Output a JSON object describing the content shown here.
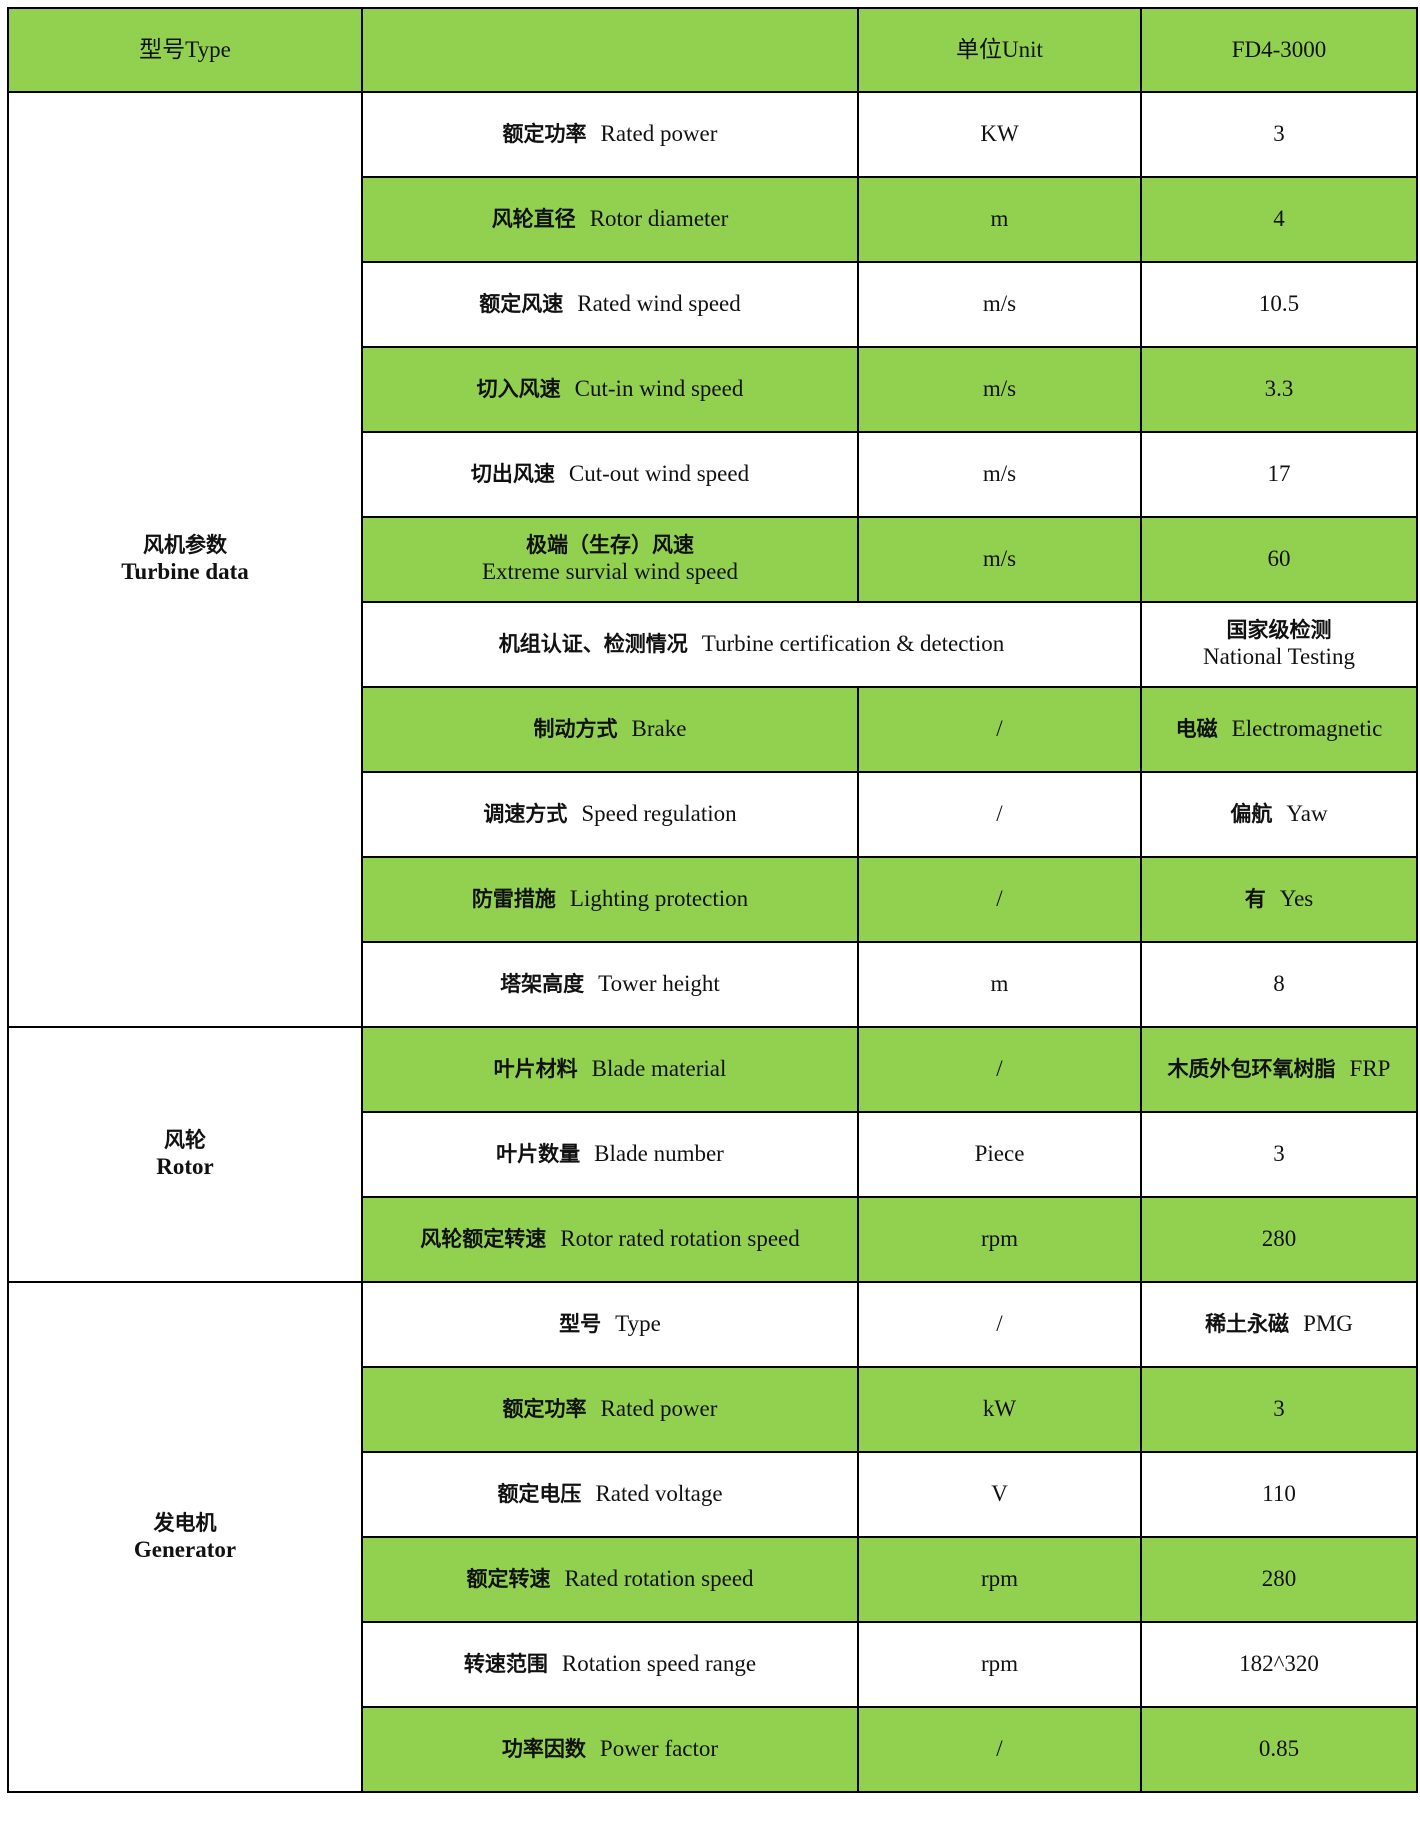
{
  "colors": {
    "green": "#92d050",
    "white": "#ffffff"
  },
  "header": {
    "type": "型号Type",
    "param": "",
    "unit": "单位Unit",
    "model": "FD4-3000"
  },
  "groups": [
    {
      "zh": "风机参数",
      "en": "Turbine data"
    },
    {
      "zh": "风轮",
      "en": "Rotor"
    },
    {
      "zh": "发电机",
      "en": "Generator"
    }
  ],
  "rows": [
    {
      "zh": "额定功率",
      "en": "Rated power",
      "unit": "KW",
      "value_zh": "",
      "value": "3"
    },
    {
      "zh": "风轮直径",
      "en": "Rotor diameter",
      "unit": "m",
      "value_zh": "",
      "value": "4"
    },
    {
      "zh": "额定风速",
      "en": "Rated wind speed",
      "unit": "m/s",
      "value_zh": "",
      "value": "10.5"
    },
    {
      "zh": "切入风速",
      "en": "Cut-in wind speed",
      "unit": "m/s",
      "value_zh": "",
      "value": "3.3"
    },
    {
      "zh": "切出风速",
      "en": "Cut-out wind speed",
      "unit": "m/s",
      "value_zh": "",
      "value": "17"
    },
    {
      "zh": "极端（生存）风速",
      "en": "Extreme survial wind speed",
      "unit": "m/s",
      "value_zh": "",
      "value": "60"
    },
    {
      "zh": "机组认证、检测情况",
      "en": "Turbine certification & detection",
      "unit": "",
      "value_zh": "国家级检测",
      "value": "National Testing"
    },
    {
      "zh": "制动方式",
      "en": "Brake",
      "unit": "/",
      "value_zh": "电磁",
      "value": "Electromagnetic"
    },
    {
      "zh": "调速方式",
      "en": "Speed regulation",
      "unit": "/",
      "value_zh": "偏航",
      "value": "Yaw"
    },
    {
      "zh": "防雷措施",
      "en": "Lighting protection",
      "unit": "/",
      "value_zh": "有",
      "value": "Yes"
    },
    {
      "zh": "塔架高度",
      "en": "Tower height",
      "unit": "m",
      "value_zh": "",
      "value": "8"
    },
    {
      "zh": "叶片材料",
      "en": "Blade material",
      "unit": "/",
      "value_zh": "木质外包环氧树脂",
      "value": "FRP"
    },
    {
      "zh": "叶片数量",
      "en": "Blade number",
      "unit": "Piece",
      "value_zh": "",
      "value": "3"
    },
    {
      "zh": "风轮额定转速",
      "en": "Rotor rated rotation speed",
      "unit": "rpm",
      "value_zh": "",
      "value": "280"
    },
    {
      "zh": "型号",
      "en": "Type",
      "unit": "/",
      "value_zh": "稀土永磁",
      "value": "PMG"
    },
    {
      "zh": "额定功率",
      "en": "Rated power",
      "unit": "kW",
      "value_zh": "",
      "value": "3"
    },
    {
      "zh": "额定电压",
      "en": "Rated voltage",
      "unit": "V",
      "value_zh": "",
      "value": "110"
    },
    {
      "zh": "额定转速",
      "en": "Rated rotation speed",
      "unit": "rpm",
      "value_zh": "",
      "value": "280"
    },
    {
      "zh": "转速范围",
      "en": "Rotation speed range",
      "unit": "rpm",
      "value_zh": "",
      "value": "182^320"
    },
    {
      "zh": "功率因数",
      "en": "Power factor",
      "unit": "/",
      "value_zh": "",
      "value": "0.85"
    }
  ]
}
